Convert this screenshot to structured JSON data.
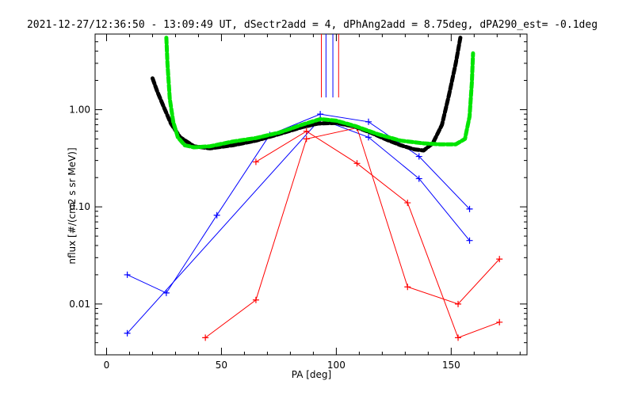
{
  "chart_data": {
    "type": "line",
    "title": "2021-12-27/12:36:50 - 13:09:49 UT, dSectr2add = 4, dPhAng2add = 8.75deg, dPA290_est=  -0.1deg",
    "xlabel": "PA [deg]",
    "ylabel": "nflux [#/(cm2 s sr MeV)]",
    "xlim": [
      -5,
      183
    ],
    "ylim": [
      0.003,
      6.0
    ],
    "yscale": "log",
    "x_ticks": [
      0,
      50,
      100,
      150
    ],
    "x_tick_labels": [
      "0",
      "50",
      "100",
      "150"
    ],
    "y_ticks": [
      0.01,
      0.1,
      1.0
    ],
    "y_tick_labels": [
      "0.01",
      "0.10",
      "1.00"
    ],
    "series": [
      {
        "color": "#0000ff",
        "style": "line+plus",
        "x": [
          9,
          26,
          48,
          71,
          93,
          114,
          136,
          158
        ],
        "y": [
          0.02,
          0.013,
          0.082,
          0.55,
          0.9,
          0.75,
          0.33,
          0.095
        ]
      },
      {
        "color": "#0000ff",
        "style": "line+plus",
        "x": [
          9,
          93,
          114,
          136,
          158
        ],
        "y": [
          0.005,
          0.8,
          0.52,
          0.195,
          0.045
        ]
      },
      {
        "color": "#ff0000",
        "style": "line+plus",
        "x": [
          43,
          65,
          87,
          109,
          131,
          153,
          171
        ],
        "y": [
          0.0045,
          0.011,
          0.5,
          0.65,
          0.015,
          0.01,
          0.029
        ]
      },
      {
        "color": "#ff0000",
        "style": "line+plus",
        "x": [
          65,
          87,
          109,
          131,
          153,
          171
        ],
        "y": [
          0.29,
          0.6,
          0.28,
          0.11,
          0.0045,
          0.0065
        ]
      },
      {
        "color": "#000000",
        "style": "thick-dashed",
        "x": [
          20,
          22,
          25,
          28,
          32,
          38,
          45,
          55,
          65,
          75,
          85,
          92,
          100,
          108,
          115,
          122,
          128,
          134,
          138,
          142,
          146,
          149,
          152,
          154
        ],
        "y": [
          2.1,
          1.55,
          1.05,
          0.72,
          0.52,
          0.42,
          0.4,
          0.43,
          0.48,
          0.56,
          0.66,
          0.72,
          0.73,
          0.67,
          0.58,
          0.49,
          0.43,
          0.39,
          0.38,
          0.45,
          0.7,
          1.4,
          3.0,
          5.5
        ]
      },
      {
        "color": "#00e400",
        "style": "thick-dashed",
        "x": [
          26,
          26.5,
          27.5,
          29,
          31,
          34,
          38,
          45,
          55,
          65,
          75,
          85,
          93,
          100,
          108,
          118,
          128,
          138,
          145,
          152,
          156,
          158,
          159,
          159.5
        ],
        "y": [
          5.5,
          3.0,
          1.3,
          0.75,
          0.52,
          0.43,
          0.41,
          0.42,
          0.47,
          0.51,
          0.58,
          0.7,
          0.8,
          0.77,
          0.68,
          0.56,
          0.48,
          0.45,
          0.44,
          0.44,
          0.5,
          0.85,
          1.9,
          3.8
        ]
      }
    ],
    "markers": [
      {
        "color": "#ff0000",
        "x": 93.5
      },
      {
        "color": "#0000ff",
        "x": 95.5
      },
      {
        "color": "#0000ff",
        "x": 98.5
      },
      {
        "color": "#ff0000",
        "x": 101
      }
    ]
  }
}
